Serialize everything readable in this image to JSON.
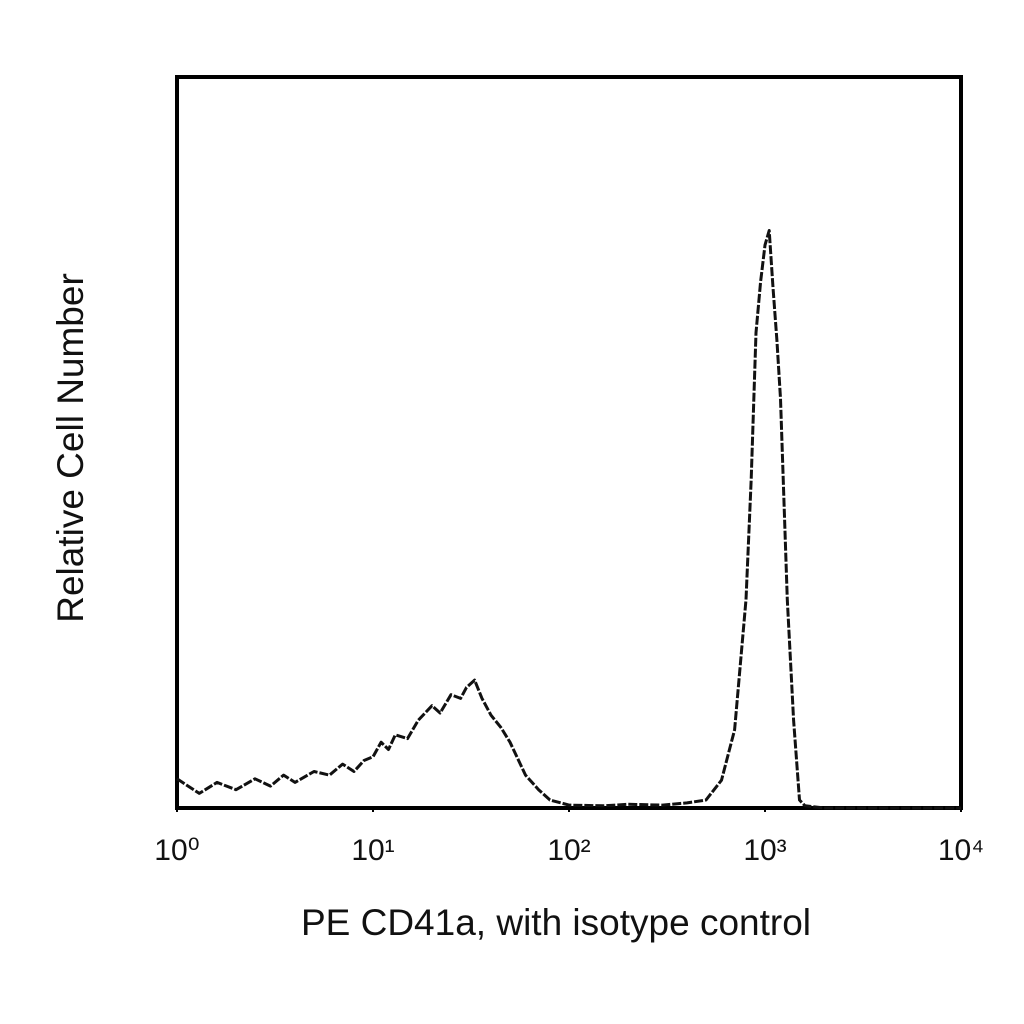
{
  "chart_data": {
    "type": "line",
    "xlabel": "PE CD41a, with isotype control",
    "ylabel": "Relative Cell Number",
    "xscale": "log",
    "xlim": [
      1,
      10000
    ],
    "xticks": [
      {
        "value": 1,
        "label": "10⁰"
      },
      {
        "value": 10,
        "label": "10¹"
      },
      {
        "value": 100,
        "label": "10²"
      },
      {
        "value": 1000,
        "label": "10³"
      },
      {
        "value": 10000,
        "label": "10⁴"
      }
    ],
    "ylim": [
      0,
      100
    ],
    "color": "#111111",
    "x": [
      1,
      1.3,
      1.6,
      2,
      2.5,
      3,
      3.5,
      4,
      5,
      6,
      7,
      8,
      9,
      10,
      11,
      12,
      13,
      15,
      17,
      20,
      22,
      25,
      28,
      30,
      33,
      36,
      40,
      45,
      50,
      60,
      70,
      80,
      100,
      150,
      200,
      300,
      400,
      500,
      600,
      700,
      800,
      850,
      900,
      950,
      1000,
      1050,
      1100,
      1150,
      1200,
      1300,
      1400,
      1500,
      1600,
      2000,
      10000
    ],
    "values": [
      4,
      2,
      3.5,
      2.5,
      4,
      3,
      4.5,
      3.5,
      5,
      4.5,
      6,
      5,
      6.5,
      7,
      9,
      8,
      10,
      9.5,
      12,
      14,
      13,
      15.5,
      15,
      16.5,
      17.5,
      15,
      12.7,
      11,
      9,
      4.5,
      2.5,
      1.1,
      0.4,
      0.3,
      0.5,
      0.4,
      0.7,
      1.1,
      3.8,
      10.7,
      28.5,
      45,
      65,
      72,
      77,
      79,
      71,
      64,
      56,
      28.5,
      12,
      1.1,
      0.3,
      0,
      0
    ]
  }
}
